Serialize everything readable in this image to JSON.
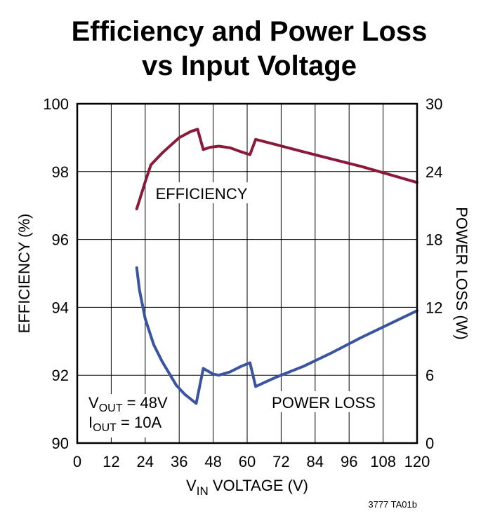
{
  "chart_data": {
    "type": "line",
    "title_line1": "Efficiency and Power Loss",
    "title_line2": "vs Input Voltage",
    "xlabel": {
      "prefix": "V",
      "sub": "IN",
      "suffix": " VOLTAGE (V)"
    },
    "ylabel_left": "EFFICIENCY (%)",
    "ylabel_right": "POWER LOSS (W)",
    "xlim": [
      0,
      120
    ],
    "ylim_left": [
      90,
      100
    ],
    "ylim_right": [
      0,
      30
    ],
    "x_ticks": [
      "0",
      "12",
      "24",
      "36",
      "48",
      "60",
      "72",
      "84",
      "96",
      "108",
      "120"
    ],
    "y_ticks_left": [
      "90",
      "92",
      "94",
      "96",
      "98",
      "100"
    ],
    "y_ticks_right": [
      "0",
      "6",
      "12",
      "18",
      "24",
      "30"
    ],
    "grid": true,
    "series": [
      {
        "name": "EFFICIENCY",
        "axis": "left",
        "color": "#8b1a3a",
        "points": [
          [
            21,
            96.9
          ],
          [
            22.5,
            97.3
          ],
          [
            24,
            97.7
          ],
          [
            26,
            98.2
          ],
          [
            30,
            98.55
          ],
          [
            36,
            99.0
          ],
          [
            40,
            99.18
          ],
          [
            42.5,
            99.25
          ],
          [
            44.5,
            98.65
          ],
          [
            47,
            98.72
          ],
          [
            50,
            98.75
          ],
          [
            54,
            98.7
          ],
          [
            58,
            98.58
          ],
          [
            61,
            98.5
          ],
          [
            63,
            98.95
          ],
          [
            70,
            98.8
          ],
          [
            80,
            98.58
          ],
          [
            90,
            98.37
          ],
          [
            100,
            98.16
          ],
          [
            110,
            97.92
          ],
          [
            120,
            97.68
          ]
        ]
      },
      {
        "name": "POWER LOSS",
        "axis": "right",
        "color": "#3a54a0",
        "points": [
          [
            21,
            15.5
          ],
          [
            22,
            13.5
          ],
          [
            24,
            11.0
          ],
          [
            27,
            8.7
          ],
          [
            30,
            7.2
          ],
          [
            35,
            5.1
          ],
          [
            38,
            4.3
          ],
          [
            42,
            3.5
          ],
          [
            44.5,
            6.6
          ],
          [
            48,
            6.1
          ],
          [
            50,
            6.0
          ],
          [
            54,
            6.3
          ],
          [
            58,
            6.8
          ],
          [
            61,
            7.1
          ],
          [
            63,
            5.0
          ],
          [
            70,
            5.8
          ],
          [
            80,
            6.8
          ],
          [
            90,
            8.0
          ],
          [
            100,
            9.3
          ],
          [
            110,
            10.5
          ],
          [
            120,
            11.7
          ]
        ]
      }
    ],
    "annotations": {
      "efficiency_label": "EFFICIENCY",
      "power_loss_label": "POWER LOSS",
      "vout": {
        "prefix": "V",
        "sub": "OUT",
        "suffix": " = 48V"
      },
      "iout": {
        "prefix": "I",
        "sub": "OUT",
        "suffix": " = 10A"
      }
    },
    "figure_ref": "3777 TA01b"
  }
}
